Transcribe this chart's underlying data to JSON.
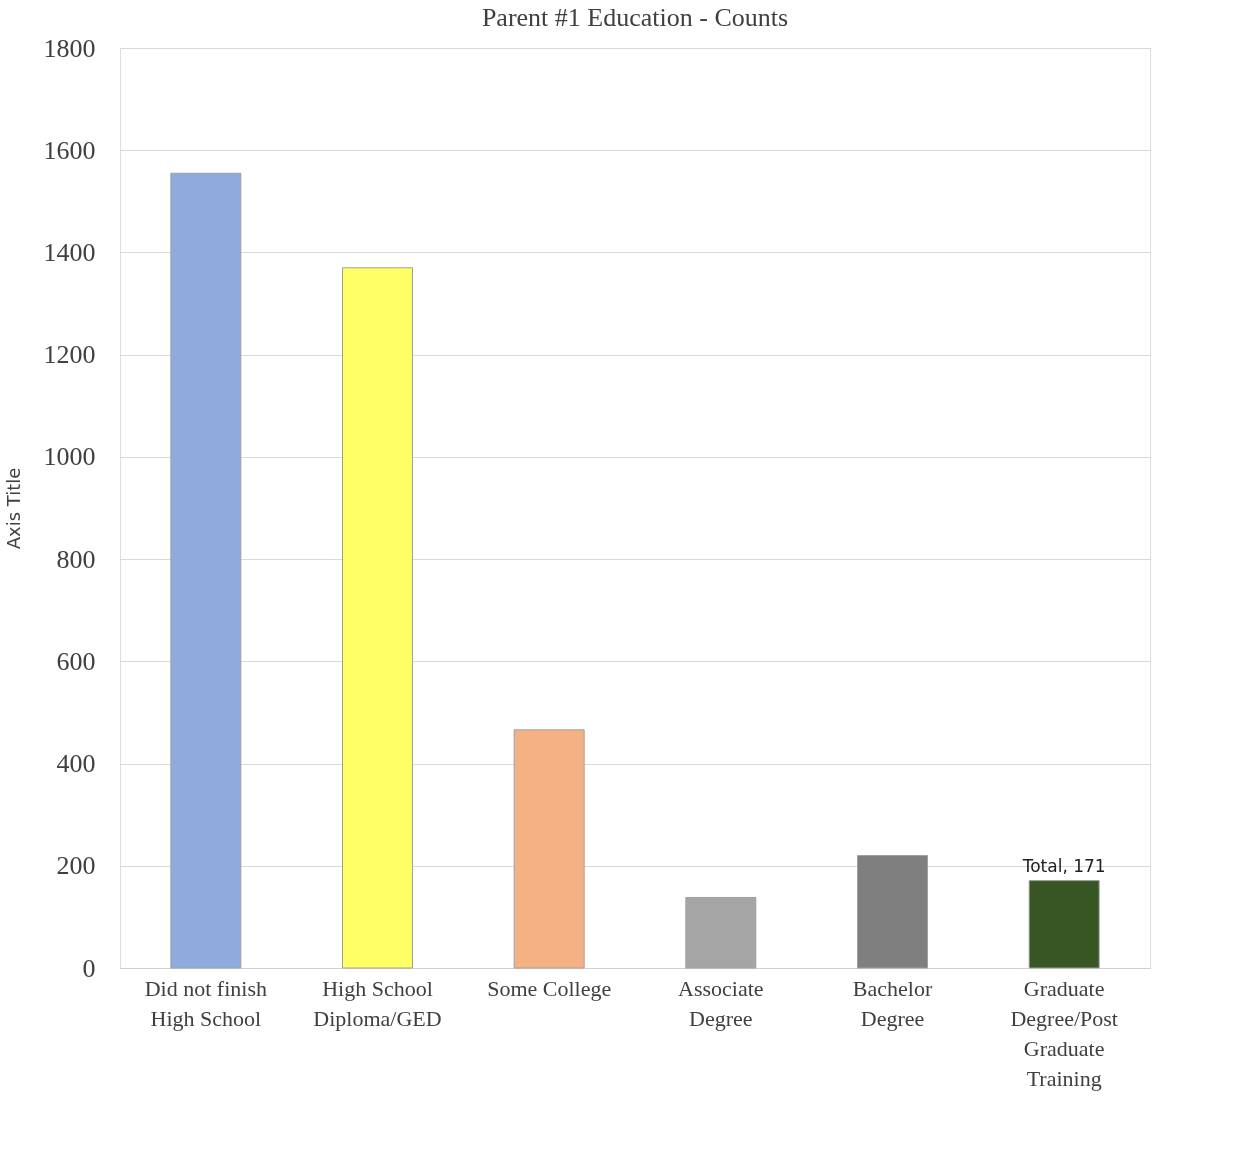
{
  "chart_data": {
    "type": "bar",
    "title": "Parent #1 Education - Counts",
    "ylabel": "Axis Title",
    "categories": [
      "Did not finish High School",
      "High School Diploma/GED",
      "Some College",
      "Associate Degree",
      "Bachelor Degree",
      "Graduate Degree/Post Graduate Training"
    ],
    "values": [
      1555,
      1370,
      466,
      138,
      220,
      171
    ],
    "colors": [
      "#8faadc",
      "#ffff66",
      "#f4b183",
      "#a5a5a5",
      "#7f7f7f",
      "#375623"
    ],
    "value_labels": [
      null,
      null,
      null,
      null,
      null,
      "Total, 171"
    ],
    "ylim": [
      0,
      1800
    ],
    "yticks": [
      0,
      200,
      400,
      600,
      800,
      1000,
      1200,
      1400,
      1600,
      1800
    ],
    "grid": "y"
  }
}
